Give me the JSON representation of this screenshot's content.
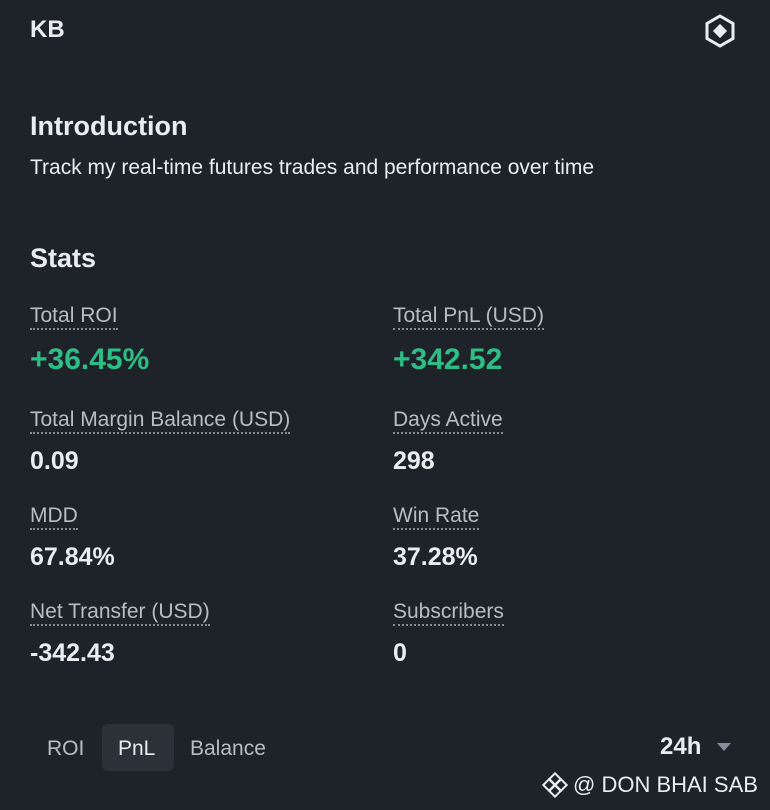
{
  "header": {
    "title": "KB"
  },
  "introduction": {
    "title": "Introduction",
    "text": "Track my real-time futures trades and performance over time"
  },
  "stats": {
    "title": "Stats",
    "items": [
      {
        "label": "Total ROI",
        "value": "+36.45%"
      },
      {
        "label": "Total PnL (USD)",
        "value": "+342.52"
      },
      {
        "label": "Total Margin Balance (USD)",
        "value": "0.09"
      },
      {
        "label": "Days Active",
        "value": "298"
      },
      {
        "label": "MDD",
        "value": "67.84%"
      },
      {
        "label": "Win Rate",
        "value": "37.28%"
      },
      {
        "label": "Net Transfer (USD)",
        "value": "-342.43"
      },
      {
        "label": "Subscribers",
        "value": "0"
      }
    ]
  },
  "tabs": [
    "ROI",
    "PnL",
    "Balance"
  ],
  "timeframe": "24h",
  "watermark": "@ DON BHAI SAB"
}
